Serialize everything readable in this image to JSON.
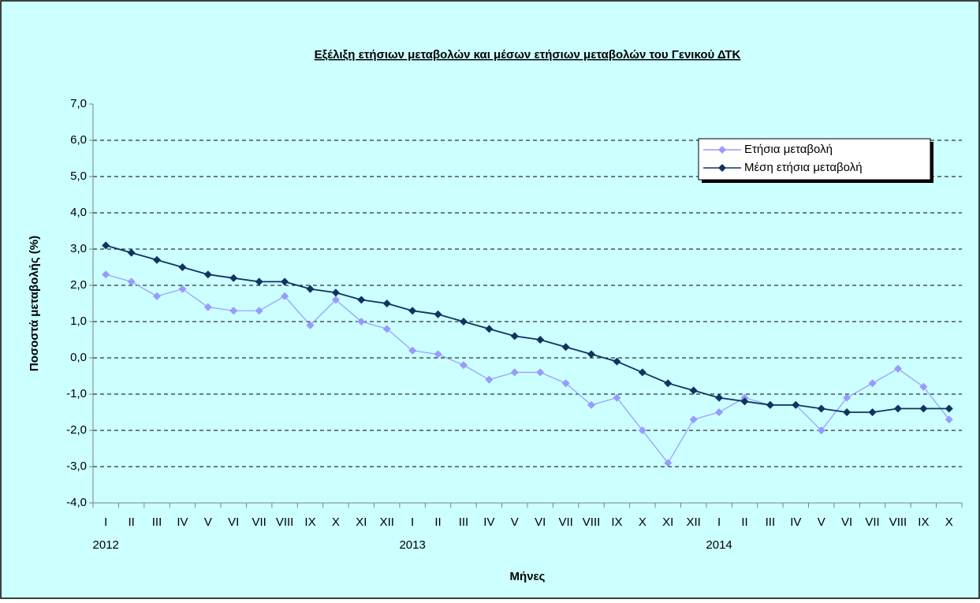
{
  "chart_data": {
    "type": "line",
    "title": "Εξέλιξη ετήσιων μεταβολών και μέσων ετήσιων μεταβολών του Γενικού ΔΤΚ",
    "y_label": "Ποσοστά μεταβολής (%)",
    "x_label": "Μήνες",
    "categories": [
      "I",
      "II",
      "III",
      "IV",
      "V",
      "VI",
      "VII",
      "VIII",
      "IX",
      "X",
      "XI",
      "XII",
      "I",
      "II",
      "III",
      "IV",
      "V",
      "VI",
      "VII",
      "VIII",
      "IX",
      "X",
      "XI",
      "XII",
      "I",
      "II",
      "III",
      "IV",
      "V",
      "VI",
      "VII",
      "VIII",
      "IX",
      "X"
    ],
    "year_labels": [
      "2012",
      null,
      null,
      null,
      null,
      null,
      null,
      null,
      null,
      null,
      null,
      null,
      "2013",
      null,
      null,
      null,
      null,
      null,
      null,
      null,
      null,
      null,
      null,
      null,
      "2014",
      null,
      null,
      null,
      null,
      null,
      null,
      null,
      null,
      null
    ],
    "series": [
      {
        "name": "Ετήσια μεταβολή",
        "color": "#9999ff",
        "values": [
          2.3,
          2.1,
          1.7,
          1.9,
          1.4,
          1.3,
          1.3,
          1.7,
          0.9,
          1.6,
          1.0,
          0.8,
          0.2,
          0.1,
          -0.2,
          -0.6,
          -0.4,
          -0.4,
          -0.7,
          -1.3,
          -1.1,
          -2.0,
          -2.9,
          -1.7,
          -1.5,
          -1.1,
          -1.3,
          -1.3,
          -2.0,
          -1.1,
          -0.7,
          -0.3,
          -0.8,
          -1.7
        ]
      },
      {
        "name": "Μέση ετήσια μεταβολή",
        "color": "#0f3460",
        "values": [
          3.1,
          2.9,
          2.7,
          2.5,
          2.3,
          2.2,
          2.1,
          2.1,
          1.9,
          1.8,
          1.6,
          1.5,
          1.3,
          1.2,
          1.0,
          0.8,
          0.6,
          0.5,
          0.3,
          0.1,
          -0.1,
          -0.4,
          -0.7,
          -0.9,
          -1.1,
          -1.2,
          -1.3,
          -1.3,
          -1.4,
          -1.5,
          -1.5,
          -1.4,
          -1.4,
          -1.4
        ]
      }
    ],
    "ylim": [
      -4,
      7
    ],
    "yticks": [
      {
        "value": -4,
        "label": "-4,0"
      },
      {
        "value": -3,
        "label": "-3,0"
      },
      {
        "value": -2,
        "label": "-2,0"
      },
      {
        "value": -1,
        "label": "-1,0"
      },
      {
        "value": 0,
        "label": "0,0"
      },
      {
        "value": 1,
        "label": "1,0"
      },
      {
        "value": 2,
        "label": "2,0"
      },
      {
        "value": 3,
        "label": "3,0"
      },
      {
        "value": 4,
        "label": "4,0"
      },
      {
        "value": 5,
        "label": "5,0"
      },
      {
        "value": 6,
        "label": "6,0"
      },
      {
        "value": 7,
        "label": "7,0"
      }
    ],
    "grid": true,
    "legend": "upper right"
  }
}
